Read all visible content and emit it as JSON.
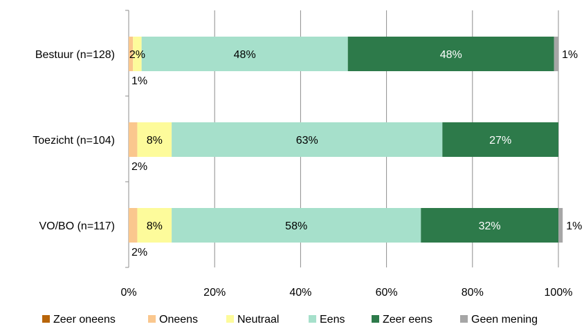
{
  "chart_data": {
    "type": "bar",
    "orientation": "horizontal",
    "stacked": true,
    "percent": true,
    "categories": [
      "Bestuur (n=128)",
      "Toezicht (n=104)",
      "VO/BO (n=117)"
    ],
    "series": [
      {
        "name": "Zeer oneens",
        "color": "#b8650a",
        "values": [
          0,
          0,
          0
        ],
        "labels": [
          "",
          "",
          ""
        ]
      },
      {
        "name": "Oneens",
        "color": "#fac78e",
        "values": [
          1,
          2,
          2
        ],
        "labels": [
          "1%",
          "2%",
          "2%"
        ]
      },
      {
        "name": "Neutraal",
        "color": "#fdfb9b",
        "values": [
          2,
          8,
          8
        ],
        "labels": [
          "2%",
          "8%",
          "8%"
        ]
      },
      {
        "name": "Eens",
        "color": "#a6e0cb",
        "values": [
          48,
          63,
          58
        ],
        "labels": [
          "48%",
          "63%",
          "58%"
        ]
      },
      {
        "name": "Zeer eens",
        "color": "#2d7a4a",
        "values": [
          48,
          27,
          32
        ],
        "labels": [
          "48%",
          "27%",
          "32%"
        ]
      },
      {
        "name": "Geen mening",
        "color": "#a6a6a6",
        "values": [
          1,
          0,
          1
        ],
        "labels": [
          "1%",
          "",
          "1%"
        ]
      }
    ],
    "xlim": [
      0,
      100
    ],
    "xticks": [
      "0%",
      "20%",
      "40%",
      "60%",
      "80%",
      "100%"
    ],
    "grid": true,
    "legend_position": "bottom"
  }
}
